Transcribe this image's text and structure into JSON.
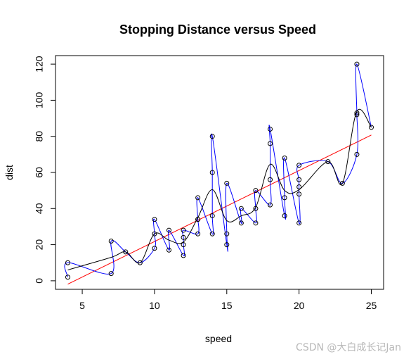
{
  "chart_data": {
    "type": "scatter",
    "title": "Stopping Distance versus Speed",
    "xlabel": "speed",
    "ylabel": "dist",
    "xlim": [
      3.15,
      25.85
    ],
    "ylim": [
      -4.72,
      124.72
    ],
    "xticks": [
      5,
      10,
      15,
      20,
      25
    ],
    "yticks": [
      0,
      20,
      40,
      60,
      80,
      100,
      120
    ],
    "grid": false,
    "points": {
      "x": [
        4,
        4,
        7,
        7,
        8,
        9,
        10,
        10,
        10,
        11,
        11,
        12,
        12,
        12,
        12,
        13,
        13,
        13,
        13,
        14,
        14,
        14,
        14,
        15,
        15,
        15,
        16,
        16,
        17,
        17,
        17,
        18,
        18,
        18,
        18,
        19,
        19,
        19,
        20,
        20,
        20,
        20,
        20,
        22,
        23,
        24,
        24,
        24,
        24,
        25
      ],
      "y": [
        2,
        10,
        4,
        22,
        16,
        10,
        18,
        26,
        34,
        17,
        28,
        14,
        20,
        24,
        28,
        26,
        34,
        34,
        46,
        26,
        36,
        60,
        80,
        20,
        26,
        54,
        32,
        40,
        32,
        40,
        50,
        42,
        56,
        76,
        84,
        36,
        46,
        68,
        32,
        48,
        52,
        56,
        64,
        66,
        54,
        70,
        92,
        93,
        120,
        85
      ]
    },
    "lines": [
      {
        "kind": "linear fit",
        "color": "#ff0000",
        "intercept": -17.579,
        "slope": 3.932
      },
      {
        "kind": "smooth curve",
        "color": "#000000"
      },
      {
        "kind": "interpolating spline",
        "color": "#0000ff"
      }
    ]
  },
  "watermark": "CSDN @大白成长记Jan"
}
